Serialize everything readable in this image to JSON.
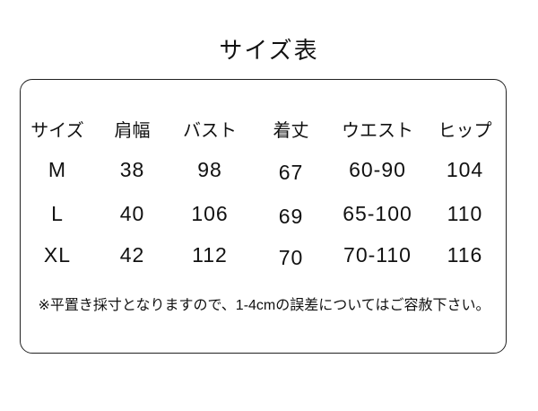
{
  "page": {
    "title": "サイズ表"
  },
  "size_table": {
    "columns": [
      "サイズ",
      "肩幅",
      "バスト",
      "着丈",
      "ウエスト",
      "ヒップ"
    ],
    "rows": [
      {
        "cells": [
          "M",
          "38",
          "98",
          "67",
          "60-90",
          "104"
        ]
      },
      {
        "cells": [
          "L",
          "40",
          "106",
          "69",
          "65-100",
          "110"
        ]
      },
      {
        "cells": [
          "XL",
          "42",
          "112",
          "70",
          "70-110",
          "116"
        ]
      }
    ],
    "note": "※平置き採寸となりますので、1-4cmの誤差についてはご容赦下さい。"
  },
  "chart_data": {
    "type": "table",
    "title": "サイズ表",
    "columns": [
      "サイズ",
      "肩幅",
      "バスト",
      "着丈",
      "ウエスト",
      "ヒップ"
    ],
    "rows": [
      [
        "M",
        "38",
        "98",
        "67",
        "60-90",
        "104"
      ],
      [
        "L",
        "40",
        "106",
        "69",
        "65-100",
        "110"
      ],
      [
        "XL",
        "42",
        "112",
        "70",
        "70-110",
        "116"
      ]
    ],
    "note": "※平置き採寸となりますので、1-4cmの誤差についてはご容赦下さい。"
  },
  "colors": {
    "text": "#111111",
    "border": "#222222",
    "background": "#ffffff"
  }
}
